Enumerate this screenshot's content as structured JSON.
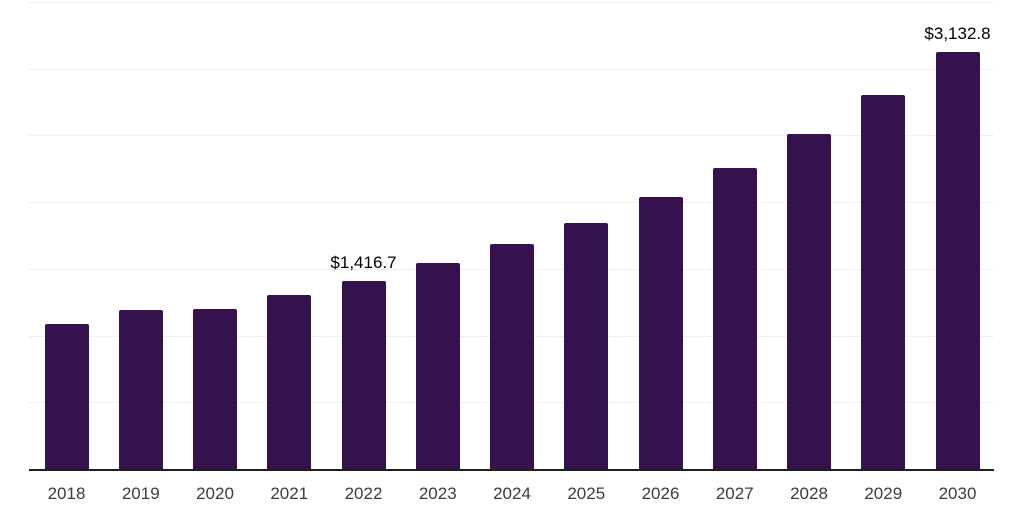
{
  "chart_data": {
    "type": "bar",
    "title": "",
    "xlabel": "",
    "ylabel": "",
    "categories": [
      "2018",
      "2019",
      "2020",
      "2021",
      "2022",
      "2023",
      "2024",
      "2025",
      "2026",
      "2027",
      "2028",
      "2029",
      "2030"
    ],
    "values": [
      1093,
      1198,
      1206,
      1315,
      1416.7,
      1551,
      1696,
      1851,
      2046,
      2264,
      2521,
      2814,
      3132.8
    ],
    "labeled_points": [
      {
        "category": "2022",
        "label": "$1,416.7"
      },
      {
        "category": "2030",
        "label": "$3,132.8"
      }
    ],
    "ylim": [
      0,
      3500
    ],
    "gridline_step": 500,
    "grid": true,
    "legend": false,
    "y_tick_labels_visible": false
  },
  "colors": {
    "bar": "#35114D",
    "gridline": "#EFEFEF",
    "axis_line": "#1F1F1F",
    "x_tick_label": "#3C3C3C",
    "data_label": "#000000",
    "background": "#FFFFFF"
  }
}
